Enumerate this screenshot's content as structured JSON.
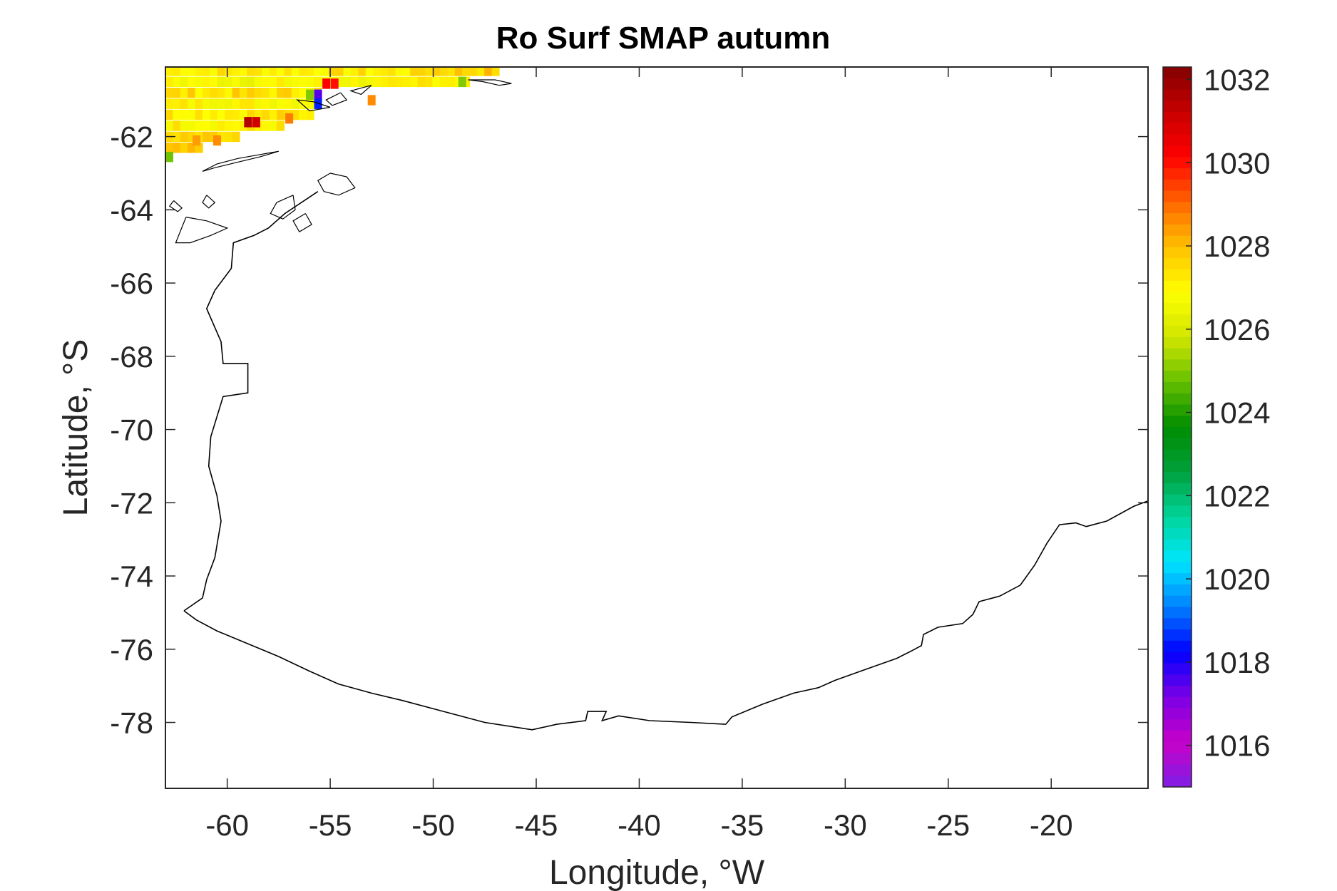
{
  "figure": {
    "title": "Ro Surf SMAP autumn",
    "xlabel": "Longitude, °W",
    "ylabel": "Latitude, °S"
  },
  "chart_data": {
    "type": "heatmap",
    "title": "Ro Surf SMAP autumn",
    "xlabel": "Longitude, °W",
    "ylabel": "Latitude, °S",
    "xlim": [
      -63,
      -15.3
    ],
    "ylim": [
      -79.8,
      -60.1
    ],
    "xticks": [
      -60,
      -55,
      -50,
      -45,
      -40,
      -35,
      -30,
      -25,
      -20
    ],
    "yticks": [
      -62,
      -64,
      -66,
      -68,
      -70,
      -72,
      -74,
      -76,
      -78
    ],
    "grid": false,
    "colorbar": {
      "location": "right",
      "clim": [
        1015,
        1032.3
      ],
      "ticks": [
        1016,
        1018,
        1020,
        1022,
        1024,
        1026,
        1028,
        1030,
        1032
      ],
      "colormap": [
        "#7f1fe5",
        "#c800c8",
        "#7a00e6",
        "#0000ff",
        "#0080ff",
        "#00e6ff",
        "#00d59a",
        "#00a03c",
        "#008c00",
        "#66c000",
        "#d2e600",
        "#ffff00",
        "#ffc000",
        "#ff6400",
        "#ff0000",
        "#c80000",
        "#820000"
      ]
    },
    "data_notes": "Values present only in the northwest corner (~63–47°W, 60.1–62.6°S); mostly 1026.5–1028.5, isolated highs ~1031, lows ~1018–1025 near 55.5°W.",
    "series": [
      {
        "rows": [
          {
            "lat": -60.2,
            "lon_start": -63.0,
            "lon_end": -46.8,
            "value": 1027.2
          },
          {
            "lat": -60.5,
            "lon_start": -63.0,
            "lon_end": -48.4,
            "value": 1026.8
          },
          {
            "lat": -60.8,
            "lon_start": -63.0,
            "lon_end": -55.5,
            "value": 1027.4
          },
          {
            "lat": -61.1,
            "lon_start": -63.0,
            "lon_end": -55.5,
            "value": 1027.0
          },
          {
            "lat": -61.4,
            "lon_start": -63.0,
            "lon_end": -56.0,
            "value": 1027.3
          },
          {
            "lat": -61.7,
            "lon_start": -63.0,
            "lon_end": -57.5,
            "value": 1027.1
          },
          {
            "lat": -62.0,
            "lon_start": -63.0,
            "lon_end": -59.5,
            "value": 1027.4
          },
          {
            "lat": -62.3,
            "lon_start": -63.0,
            "lon_end": -61.5,
            "value": 1027.6
          },
          {
            "lat": -62.55,
            "lon_start": -63.0,
            "lon_end": -62.9,
            "value": 1024.5
          }
        ],
        "highlights": [
          {
            "lon": -59.0,
            "lat": -61.6,
            "value": 1031.5
          },
          {
            "lon": -58.6,
            "lat": -61.6,
            "value": 1031.0
          },
          {
            "lon": -55.2,
            "lat": -60.55,
            "value": 1030.2
          },
          {
            "lon": -54.8,
            "lat": -60.55,
            "value": 1030.0
          },
          {
            "lon": -56.0,
            "lat": -60.85,
            "value": 1025.0
          },
          {
            "lon": -55.6,
            "lat": -60.85,
            "value": 1017.5
          },
          {
            "lon": -55.6,
            "lat": -61.1,
            "value": 1018.5
          },
          {
            "lon": -48.6,
            "lat": -60.5,
            "value": 1025.0
          },
          {
            "lon": -53.0,
            "lat": -61.0,
            "value": 1028.6
          },
          {
            "lon": -57.0,
            "lat": -61.5,
            "value": 1028.8
          },
          {
            "lon": -60.5,
            "lat": -62.1,
            "value": 1028.6
          },
          {
            "lon": -61.5,
            "lat": -62.1,
            "value": 1028.4
          }
        ]
      }
    ],
    "coastline": {
      "main": [
        [
          -62.1,
          -74.95
        ],
        [
          -61.5,
          -75.2
        ],
        [
          -60.5,
          -75.5
        ],
        [
          -59.0,
          -75.85
        ],
        [
          -57.5,
          -76.2
        ],
        [
          -56.0,
          -76.6
        ],
        [
          -54.6,
          -76.95
        ],
        [
          -53.0,
          -77.2
        ],
        [
          -51.5,
          -77.4
        ],
        [
          -49.5,
          -77.7
        ],
        [
          -47.5,
          -78.0
        ],
        [
          -45.2,
          -78.2
        ],
        [
          -44.0,
          -78.05
        ],
        [
          -42.6,
          -77.95
        ],
        [
          -42.5,
          -77.7
        ],
        [
          -41.6,
          -77.7
        ],
        [
          -41.8,
          -77.95
        ],
        [
          -41.0,
          -77.82
        ],
        [
          -39.5,
          -77.95
        ],
        [
          -37.5,
          -78.0
        ],
        [
          -35.8,
          -78.05
        ],
        [
          -35.5,
          -77.85
        ],
        [
          -34.0,
          -77.5
        ],
        [
          -32.5,
          -77.2
        ],
        [
          -31.3,
          -77.05
        ],
        [
          -30.5,
          -76.85
        ],
        [
          -29.0,
          -76.55
        ],
        [
          -27.5,
          -76.25
        ],
        [
          -26.8,
          -76.05
        ],
        [
          -26.3,
          -75.9
        ],
        [
          -26.2,
          -75.6
        ],
        [
          -25.5,
          -75.4
        ],
        [
          -24.3,
          -75.3
        ],
        [
          -23.8,
          -75.05
        ],
        [
          -23.5,
          -74.7
        ],
        [
          -22.5,
          -74.55
        ],
        [
          -21.5,
          -74.25
        ],
        [
          -20.8,
          -73.7
        ],
        [
          -20.2,
          -73.1
        ],
        [
          -19.6,
          -72.6
        ],
        [
          -18.8,
          -72.55
        ],
        [
          -18.3,
          -72.65
        ],
        [
          -17.3,
          -72.5
        ],
        [
          -16.0,
          -72.1
        ],
        [
          -15.3,
          -71.95
        ]
      ],
      "west": [
        [
          -62.1,
          -74.95
        ],
        [
          -61.2,
          -74.6
        ],
        [
          -61.0,
          -74.1
        ],
        [
          -60.6,
          -73.5
        ],
        [
          -60.3,
          -72.5
        ],
        [
          -60.5,
          -71.8
        ],
        [
          -60.9,
          -71.0
        ],
        [
          -60.8,
          -70.2
        ],
        [
          -60.2,
          -69.1
        ],
        [
          -59.0,
          -69.0
        ],
        [
          -59.0,
          -68.2
        ],
        [
          -60.2,
          -68.2
        ],
        [
          -60.3,
          -67.6
        ],
        [
          -61.0,
          -66.7
        ],
        [
          -60.6,
          -66.2
        ],
        [
          -59.8,
          -65.6
        ],
        [
          -59.7,
          -64.9
        ],
        [
          -58.7,
          -64.7
        ],
        [
          -58.0,
          -64.5
        ],
        [
          -57.2,
          -64.1
        ],
        [
          -55.6,
          -63.5
        ]
      ]
    }
  }
}
